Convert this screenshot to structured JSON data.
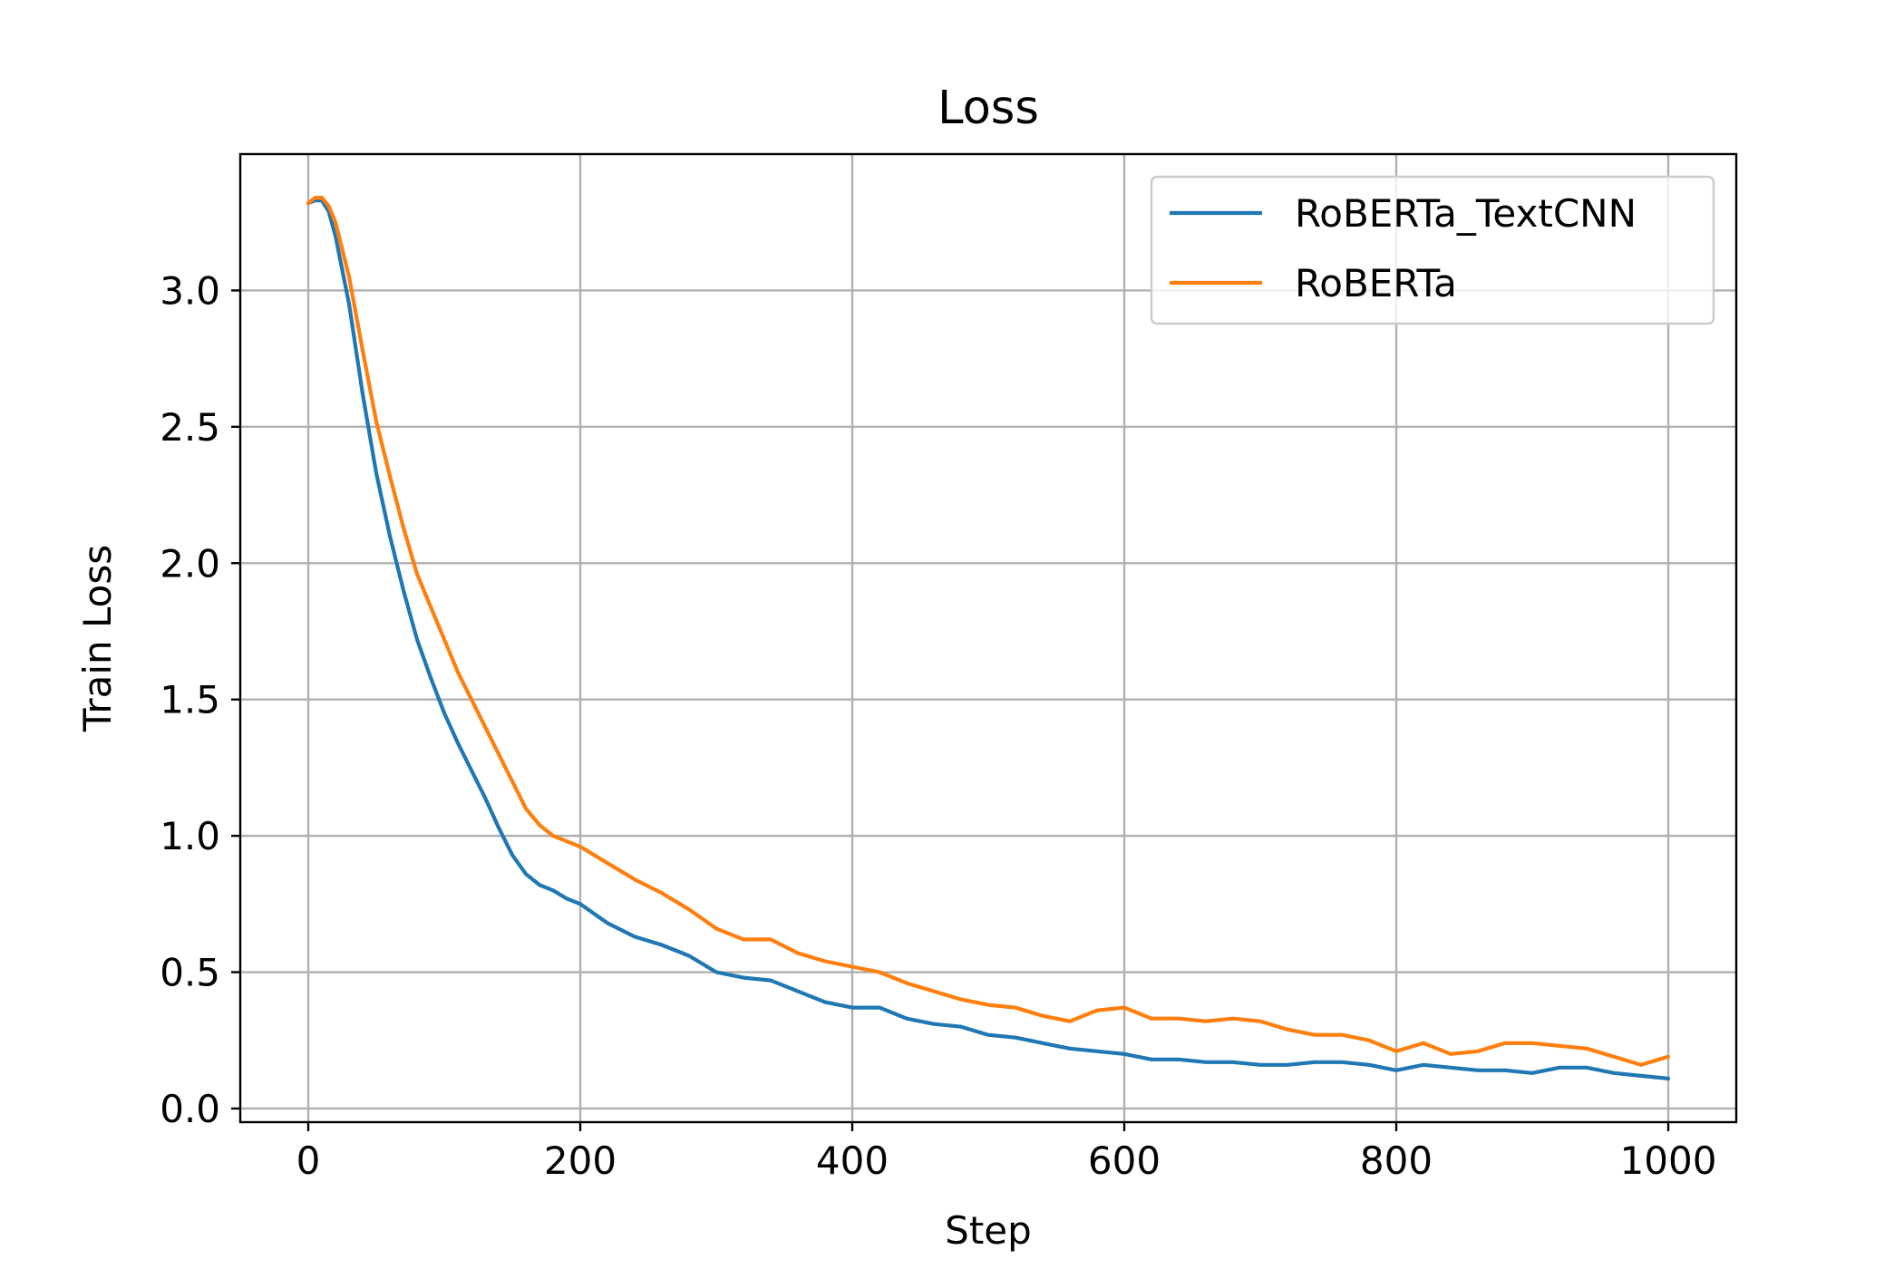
{
  "chart_data": {
    "type": "line",
    "title": "Loss",
    "xlabel": "Step",
    "ylabel": "Train Loss",
    "xlim": [
      -50,
      1050
    ],
    "ylim": [
      -0.05,
      3.5
    ],
    "xticks": [
      0,
      200,
      400,
      600,
      800,
      1000
    ],
    "xtick_labels": [
      "0",
      "200",
      "400",
      "600",
      "800",
      "1000"
    ],
    "yticks": [
      0.0,
      0.5,
      1.0,
      1.5,
      2.0,
      2.5,
      3.0
    ],
    "ytick_labels": [
      "0.0",
      "0.5",
      "1.0",
      "1.5",
      "2.0",
      "2.5",
      "3.0"
    ],
    "grid": true,
    "legend_position": "top-right",
    "series": [
      {
        "name": "RoBERTa_TextCNN",
        "color": "#1f77b4",
        "x": [
          0,
          5,
          10,
          15,
          20,
          30,
          40,
          50,
          60,
          70,
          80,
          90,
          100,
          110,
          120,
          130,
          140,
          150,
          160,
          170,
          180,
          190,
          200,
          220,
          240,
          260,
          280,
          300,
          320,
          340,
          360,
          380,
          400,
          420,
          440,
          460,
          480,
          500,
          520,
          540,
          560,
          580,
          600,
          620,
          640,
          660,
          680,
          700,
          720,
          740,
          760,
          780,
          800,
          820,
          840,
          860,
          880,
          900,
          920,
          940,
          960,
          980,
          1000
        ],
        "y": [
          3.32,
          3.33,
          3.33,
          3.29,
          3.2,
          2.95,
          2.62,
          2.33,
          2.1,
          1.9,
          1.72,
          1.58,
          1.45,
          1.34,
          1.24,
          1.14,
          1.03,
          0.93,
          0.86,
          0.82,
          0.8,
          0.77,
          0.75,
          0.68,
          0.63,
          0.6,
          0.56,
          0.5,
          0.48,
          0.47,
          0.43,
          0.39,
          0.37,
          0.37,
          0.33,
          0.31,
          0.3,
          0.27,
          0.26,
          0.24,
          0.22,
          0.21,
          0.2,
          0.18,
          0.18,
          0.17,
          0.17,
          0.16,
          0.16,
          0.17,
          0.17,
          0.16,
          0.14,
          0.16,
          0.15,
          0.14,
          0.14,
          0.13,
          0.15,
          0.15,
          0.13,
          0.12,
          0.11
        ]
      },
      {
        "name": "RoBERTa",
        "color": "#ff7f0e",
        "x": [
          0,
          5,
          10,
          15,
          20,
          30,
          40,
          50,
          60,
          70,
          80,
          90,
          100,
          110,
          120,
          130,
          140,
          150,
          160,
          170,
          180,
          190,
          200,
          220,
          240,
          260,
          280,
          300,
          320,
          340,
          360,
          380,
          400,
          420,
          440,
          460,
          480,
          500,
          520,
          540,
          560,
          580,
          600,
          620,
          640,
          660,
          680,
          700,
          720,
          740,
          760,
          780,
          800,
          820,
          840,
          860,
          880,
          900,
          920,
          940,
          960,
          980,
          1000
        ],
        "y": [
          3.32,
          3.34,
          3.34,
          3.31,
          3.25,
          3.05,
          2.78,
          2.52,
          2.32,
          2.13,
          1.96,
          1.84,
          1.72,
          1.6,
          1.5,
          1.4,
          1.3,
          1.2,
          1.1,
          1.04,
          1.0,
          0.98,
          0.96,
          0.9,
          0.84,
          0.79,
          0.73,
          0.66,
          0.62,
          0.62,
          0.57,
          0.54,
          0.52,
          0.5,
          0.46,
          0.43,
          0.4,
          0.38,
          0.37,
          0.34,
          0.32,
          0.36,
          0.37,
          0.33,
          0.33,
          0.32,
          0.33,
          0.32,
          0.29,
          0.27,
          0.27,
          0.25,
          0.21,
          0.24,
          0.2,
          0.21,
          0.24,
          0.24,
          0.23,
          0.22,
          0.19,
          0.16,
          0.19
        ]
      }
    ]
  }
}
